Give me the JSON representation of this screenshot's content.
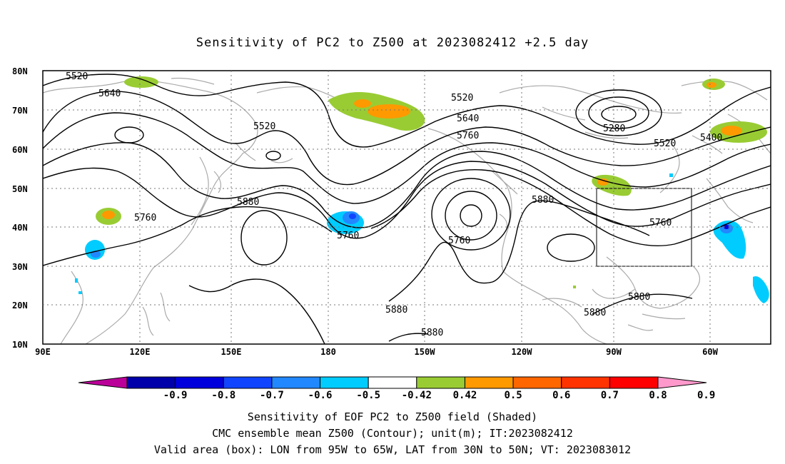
{
  "title": "Sensitivity of PC2 to Z500 at 2023082412 +2.5 day",
  "map": {
    "lat_labels": [
      "80N",
      "70N",
      "60N",
      "50N",
      "40N",
      "30N",
      "20N",
      "10N"
    ],
    "lon_labels": [
      "90E",
      "120E",
      "150E",
      "180",
      "150W",
      "120W",
      "90W",
      "60W"
    ],
    "contour_labels": [
      "5520",
      "5640",
      "5520",
      "5520",
      "5640",
      "5760",
      "5280",
      "5400",
      "5520",
      "5880",
      "5760",
      "5760",
      "5880",
      "5760",
      "5760",
      "5880",
      "5880",
      "5880",
      "5880"
    ],
    "valid_box": {
      "lon_from": "95W",
      "lon_to": "65W",
      "lat_from": "30N",
      "lat_to": "50N"
    }
  },
  "colorbar": {
    "labels": [
      "-0.9",
      "-0.8",
      "-0.7",
      "-0.6",
      "-0.5",
      "-0.42",
      "0.42",
      "0.5",
      "0.6",
      "0.7",
      "0.8",
      "0.9"
    ],
    "colors": [
      "#bb0099",
      "#0000aa",
      "#0000dd",
      "#1144ff",
      "#2288ff",
      "#00ccff",
      "#ffffff",
      "#99cc33",
      "#ff9900",
      "#ff6600",
      "#ff3300",
      "#ff0000",
      "#ff99cc"
    ]
  },
  "captions": {
    "line1": "Sensitivity of EOF PC2 to Z500 field (Shaded)",
    "line2": "CMC ensemble mean Z500 (Contour); unit(m); IT:2023082412",
    "line3": "Valid area (box): LON from 95W to 65W, LAT from 30N to 50N; VT: 2023083012"
  }
}
